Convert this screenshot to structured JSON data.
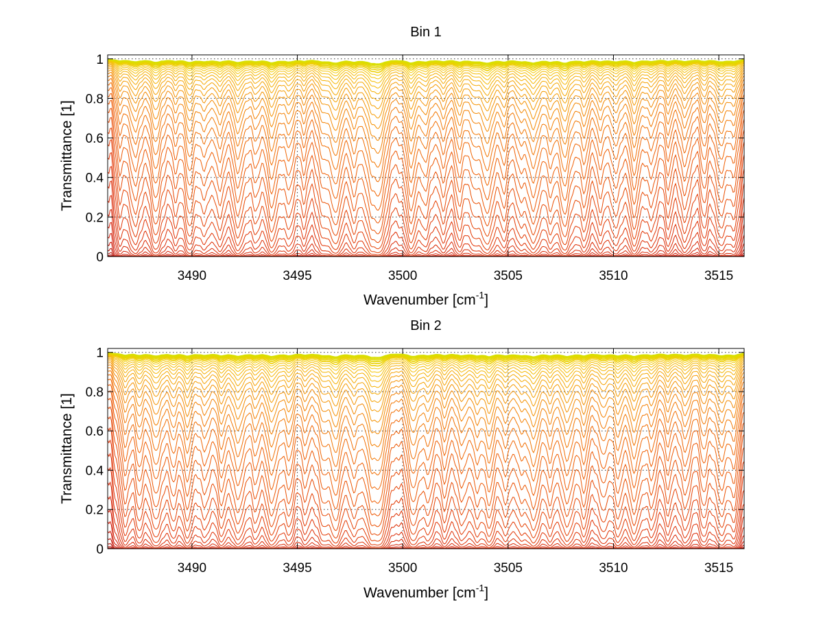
{
  "chart_data": [
    {
      "type": "line",
      "title": "Bin 1",
      "xlabel": "Wavenumber [cm",
      "xlabel_sup": "-1",
      "xlabel_close": "]",
      "ylabel": "Transmittance [1]",
      "xlim": [
        3486,
        3516.2
      ],
      "ylim": [
        0,
        1.02
      ],
      "xticks": [
        3490,
        3495,
        3500,
        3505,
        3510,
        3515
      ],
      "xtick_labels": [
        "3490",
        "3495",
        "3500",
        "3505",
        "3510",
        "3515"
      ],
      "yticks": [
        0,
        0.2,
        0.4,
        0.6,
        0.8,
        1
      ],
      "ytick_labels": [
        "0",
        "0.2",
        "0.4",
        "0.6",
        "0.8",
        "1"
      ],
      "grid": true,
      "curve_count": 40,
      "colormap": [
        "#8b0000",
        "#cc1100",
        "#e03000",
        "#f06000",
        "#f59a00",
        "#f5c800",
        "#d8e000"
      ],
      "absorption_lines": [
        {
          "x": 3486.6,
          "depth": 0.35
        },
        {
          "x": 3487.3,
          "depth": 0.6
        },
        {
          "x": 3488.3,
          "depth": 0.75
        },
        {
          "x": 3489.2,
          "depth": 0.3
        },
        {
          "x": 3489.9,
          "depth": 0.7
        },
        {
          "x": 3490.6,
          "depth": 0.45
        },
        {
          "x": 3491.3,
          "depth": 0.55
        },
        {
          "x": 3492.2,
          "depth": 0.75
        },
        {
          "x": 3493.0,
          "depth": 0.4
        },
        {
          "x": 3493.8,
          "depth": 0.8
        },
        {
          "x": 3494.6,
          "depth": 0.55
        },
        {
          "x": 3495.3,
          "depth": 0.35
        },
        {
          "x": 3496.2,
          "depth": 0.45
        },
        {
          "x": 3496.8,
          "depth": 0.9
        },
        {
          "x": 3497.7,
          "depth": 0.5
        },
        {
          "x": 3498.5,
          "depth": 0.65
        },
        {
          "x": 3498.9,
          "depth": 0.95
        },
        {
          "x": 3500.4,
          "depth": 0.85
        },
        {
          "x": 3501.1,
          "depth": 0.5
        },
        {
          "x": 3501.9,
          "depth": 0.45
        },
        {
          "x": 3502.7,
          "depth": 0.55
        },
        {
          "x": 3503.4,
          "depth": 0.4
        },
        {
          "x": 3504.0,
          "depth": 0.9
        },
        {
          "x": 3504.8,
          "depth": 0.5
        },
        {
          "x": 3505.6,
          "depth": 0.4
        },
        {
          "x": 3506.2,
          "depth": 0.85
        },
        {
          "x": 3507.0,
          "depth": 0.45
        },
        {
          "x": 3507.7,
          "depth": 0.9
        },
        {
          "x": 3508.6,
          "depth": 0.55
        },
        {
          "x": 3509.4,
          "depth": 0.45
        },
        {
          "x": 3510.1,
          "depth": 0.55
        },
        {
          "x": 3511.0,
          "depth": 0.75
        },
        {
          "x": 3511.8,
          "depth": 0.45
        },
        {
          "x": 3512.6,
          "depth": 0.4
        },
        {
          "x": 3513.4,
          "depth": 0.55
        },
        {
          "x": 3514.3,
          "depth": 0.4
        },
        {
          "x": 3515.1,
          "depth": 0.6
        },
        {
          "x": 3515.7,
          "depth": 0.5
        }
      ]
    },
    {
      "type": "line",
      "title": "Bin 2",
      "xlabel": "Wavenumber [cm",
      "xlabel_sup": "-1",
      "xlabel_close": "]",
      "ylabel": "Transmittance [1]",
      "xlim": [
        3486,
        3516.2
      ],
      "ylim": [
        0,
        1.02
      ],
      "xticks": [
        3490,
        3495,
        3500,
        3505,
        3510,
        3515
      ],
      "xtick_labels": [
        "3490",
        "3495",
        "3500",
        "3505",
        "3510",
        "3515"
      ],
      "yticks": [
        0,
        0.2,
        0.4,
        0.6,
        0.8,
        1
      ],
      "ytick_labels": [
        "0",
        "0.2",
        "0.4",
        "0.6",
        "0.8",
        "1"
      ],
      "grid": true,
      "curve_count": 40,
      "colormap": [
        "#8b0000",
        "#cc1100",
        "#e03000",
        "#f06000",
        "#f59a00",
        "#f5c800",
        "#d8e000"
      ],
      "absorption_lines": [
        {
          "x": 3486.8,
          "depth": 0.55
        },
        {
          "x": 3487.5,
          "depth": 0.5
        },
        {
          "x": 3488.3,
          "depth": 0.75
        },
        {
          "x": 3489.1,
          "depth": 0.45
        },
        {
          "x": 3489.8,
          "depth": 0.7
        },
        {
          "x": 3490.6,
          "depth": 0.5
        },
        {
          "x": 3491.4,
          "depth": 0.6
        },
        {
          "x": 3492.2,
          "depth": 0.8
        },
        {
          "x": 3493.0,
          "depth": 0.45
        },
        {
          "x": 3493.8,
          "depth": 0.85
        },
        {
          "x": 3494.6,
          "depth": 0.6
        },
        {
          "x": 3495.4,
          "depth": 0.4
        },
        {
          "x": 3496.2,
          "depth": 0.5
        },
        {
          "x": 3496.8,
          "depth": 0.92
        },
        {
          "x": 3497.7,
          "depth": 0.55
        },
        {
          "x": 3498.5,
          "depth": 0.7
        },
        {
          "x": 3498.9,
          "depth": 0.95
        },
        {
          "x": 3500.5,
          "depth": 0.88
        },
        {
          "x": 3501.2,
          "depth": 0.55
        },
        {
          "x": 3502.0,
          "depth": 0.5
        },
        {
          "x": 3502.8,
          "depth": 0.6
        },
        {
          "x": 3503.5,
          "depth": 0.5
        },
        {
          "x": 3504.1,
          "depth": 0.8
        },
        {
          "x": 3504.9,
          "depth": 0.55
        },
        {
          "x": 3505.6,
          "depth": 0.45
        },
        {
          "x": 3506.2,
          "depth": 0.9
        },
        {
          "x": 3507.0,
          "depth": 0.5
        },
        {
          "x": 3507.8,
          "depth": 0.85
        },
        {
          "x": 3508.6,
          "depth": 0.6
        },
        {
          "x": 3509.5,
          "depth": 0.55
        },
        {
          "x": 3510.2,
          "depth": 0.6
        },
        {
          "x": 3511.0,
          "depth": 0.8
        },
        {
          "x": 3511.8,
          "depth": 0.5
        },
        {
          "x": 3512.6,
          "depth": 0.45
        },
        {
          "x": 3513.4,
          "depth": 0.6
        },
        {
          "x": 3514.3,
          "depth": 0.5
        },
        {
          "x": 3515.1,
          "depth": 0.65
        },
        {
          "x": 3515.7,
          "depth": 0.6
        }
      ]
    }
  ]
}
